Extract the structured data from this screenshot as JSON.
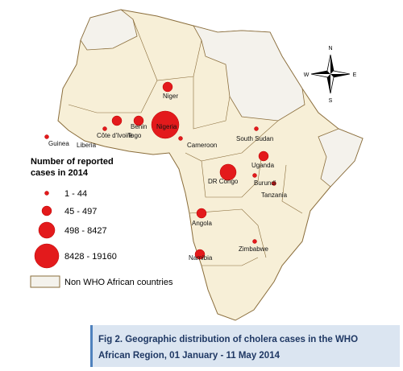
{
  "map": {
    "labels": [
      "Niger",
      "Guinea",
      "Côte d'Ivoire",
      "Togo",
      "Benin",
      "Nigeria",
      "Liberia",
      "Cameroon",
      "South Sudan",
      "Uganda",
      "DR Congo",
      "Burundi",
      "Tanzania",
      "Angola",
      "Zimbabwe",
      "Namibia"
    ],
    "compass": [
      "N",
      "E",
      "S",
      "W"
    ],
    "legend": {
      "title": [
        "Number of reported",
        "cases in 2014"
      ],
      "classes": [
        "1 - 44",
        "45 - 497",
        "498 - 8427",
        "8428 - 19160"
      ],
      "non_who": "Non WHO African countries"
    }
  },
  "caption": [
    "Fig 2. Geographic distribution of cholera cases in the WHO",
    "African Region, 01 January - 11 May 2014"
  ]
}
